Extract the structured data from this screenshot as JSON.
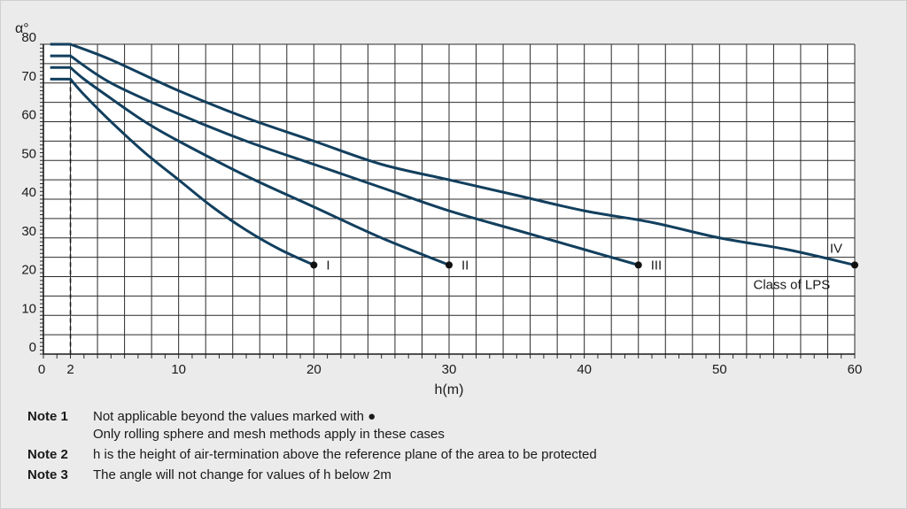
{
  "chart_data": {
    "type": "line",
    "xlabel": "h(m)",
    "ylabel": "α°",
    "xlim": [
      0,
      60
    ],
    "ylim": [
      0,
      80
    ],
    "x_ticks": [
      0,
      2,
      10,
      20,
      30,
      40,
      50,
      60
    ],
    "y_ticks": [
      0,
      10,
      20,
      30,
      40,
      50,
      60,
      70,
      80
    ],
    "grid": true,
    "series": [
      {
        "name": "I",
        "points": [
          [
            0.5,
            71
          ],
          [
            2,
            71
          ],
          [
            3,
            67
          ],
          [
            5,
            60
          ],
          [
            7.5,
            52
          ],
          [
            10,
            45
          ],
          [
            12.5,
            38
          ],
          [
            15,
            32
          ],
          [
            17.5,
            27
          ],
          [
            20,
            23
          ]
        ]
      },
      {
        "name": "II",
        "points": [
          [
            0.5,
            74
          ],
          [
            2,
            74
          ],
          [
            3,
            71
          ],
          [
            5,
            66
          ],
          [
            7.5,
            60
          ],
          [
            10,
            55
          ],
          [
            15,
            46
          ],
          [
            20,
            38
          ],
          [
            25,
            30
          ],
          [
            30,
            23
          ]
        ]
      },
      {
        "name": "III",
        "points": [
          [
            0.5,
            77
          ],
          [
            2,
            77
          ],
          [
            5,
            70
          ],
          [
            10,
            62
          ],
          [
            15,
            55
          ],
          [
            20,
            49
          ],
          [
            25,
            43
          ],
          [
            30,
            37
          ],
          [
            35,
            32
          ],
          [
            40,
            27
          ],
          [
            44,
            23
          ]
        ]
      },
      {
        "name": "IV",
        "points": [
          [
            0.5,
            80
          ],
          [
            2,
            80
          ],
          [
            5,
            76
          ],
          [
            10,
            68
          ],
          [
            15,
            61
          ],
          [
            20,
            55
          ],
          [
            25,
            49
          ],
          [
            30,
            45
          ],
          [
            35,
            41
          ],
          [
            40,
            37
          ],
          [
            45,
            34
          ],
          [
            50,
            30
          ],
          [
            55,
            27
          ],
          [
            60,
            23
          ]
        ]
      }
    ],
    "end_markers": true,
    "line_color": "#123f5e",
    "legend_label": "Class of LPS"
  },
  "notes": [
    {
      "label": "Note 1",
      "lines": [
        "Not applicable beyond the values marked with ●",
        "Only rolling sphere and mesh methods apply in these cases"
      ]
    },
    {
      "label": "Note 2",
      "lines": [
        "h is the height of air-termination above the reference plane of the area to be protected"
      ]
    },
    {
      "label": "Note 3",
      "lines": [
        "The angle will not change for values of h below 2m"
      ]
    }
  ]
}
